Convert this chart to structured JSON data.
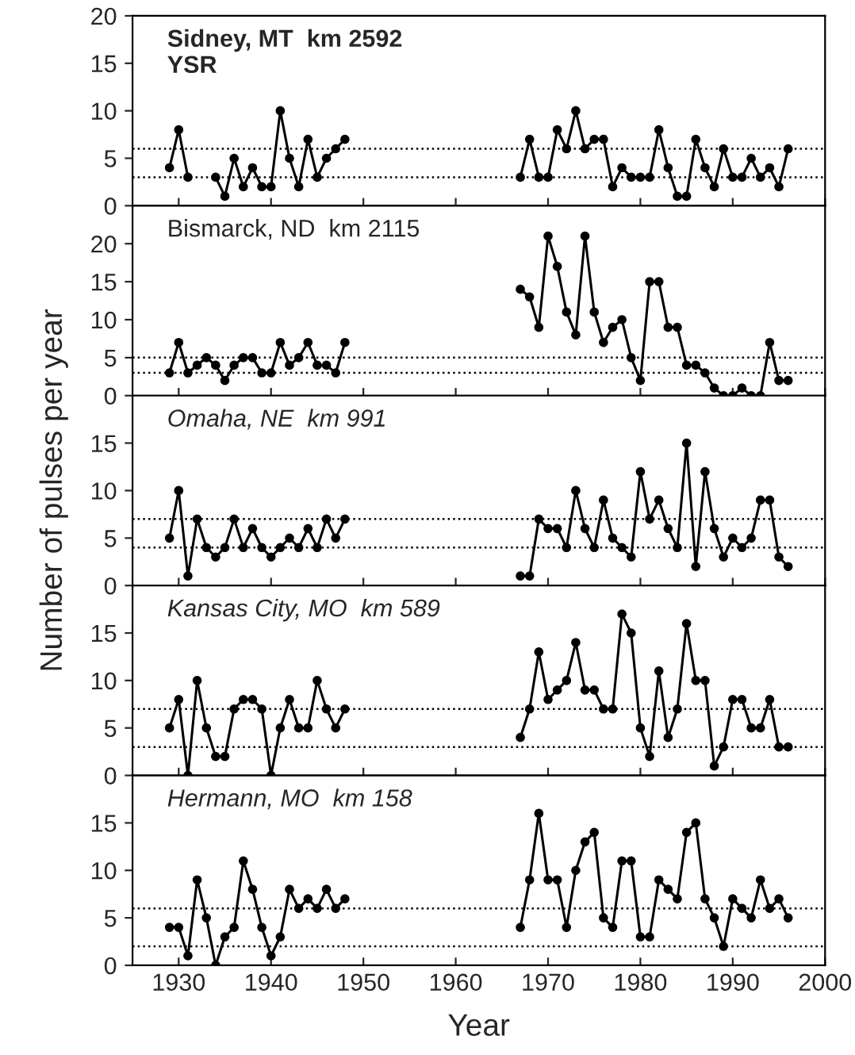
{
  "chart_data": [
    {
      "type": "line",
      "annotations": [
        "Sidney, MT  km 2592\nYSR"
      ],
      "xlim": [
        1925,
        2000
      ],
      "xticks": [
        1930,
        1940,
        1950,
        1960,
        1970,
        1980,
        1990,
        2000
      ],
      "ylim": [
        0,
        20
      ],
      "yticks": [
        0,
        5,
        10,
        15,
        20
      ],
      "tick_labels": "y",
      "grid": false,
      "marker": "circle",
      "line_style": "solid",
      "ref_lines": [
        {
          "axis": "y",
          "value": 6,
          "line_style": "dotted"
        },
        {
          "axis": "y",
          "value": 3,
          "line_style": "dotted"
        }
      ],
      "series": [
        {
          "color": "#000000",
          "x": [
            1929,
            1930,
            1931,
            1932,
            1933,
            1934,
            1935,
            1936,
            1937,
            1938,
            1939,
            1940,
            1941,
            1942,
            1943,
            1944,
            1945,
            1946,
            1947,
            1948,
            1949,
            1967,
            1968,
            1969,
            1970,
            1971,
            1972,
            1973,
            1974,
            1975,
            1976,
            1977,
            1978,
            1979,
            1980,
            1981,
            1982,
            1983,
            1984,
            1985,
            1986,
            1987,
            1988,
            1989,
            1990,
            1991,
            1992,
            1993,
            1994,
            1995,
            1996
          ],
          "values": [
            4,
            8,
            3,
            null,
            null,
            3,
            1,
            5,
            2,
            4,
            2,
            2,
            10,
            5,
            2,
            7,
            3,
            5,
            6,
            7,
            null,
            3,
            7,
            3,
            3,
            8,
            6,
            10,
            6,
            7,
            7,
            2,
            4,
            3,
            3,
            3,
            8,
            4,
            1,
            1,
            7,
            4,
            2,
            6,
            3,
            3,
            5,
            3,
            4,
            2,
            6
          ]
        }
      ]
    },
    {
      "type": "line",
      "annotations": [
        "Bismarck, ND  km 2115"
      ],
      "xlim": [
        1925,
        2000
      ],
      "xticks": [
        1930,
        1940,
        1950,
        1960,
        1970,
        1980,
        1990,
        2000
      ],
      "ylim": [
        0,
        25
      ],
      "yticks": [
        0,
        5,
        10,
        15,
        20
      ],
      "tick_labels": "y",
      "grid": false,
      "marker": "circle",
      "line_style": "solid",
      "ref_lines": [
        {
          "axis": "y",
          "value": 5,
          "line_style": "dotted"
        },
        {
          "axis": "y",
          "value": 3,
          "line_style": "dotted"
        }
      ],
      "series": [
        {
          "color": "#000000",
          "x": [
            1929,
            1930,
            1931,
            1932,
            1933,
            1934,
            1935,
            1936,
            1937,
            1938,
            1939,
            1940,
            1941,
            1942,
            1943,
            1944,
            1945,
            1946,
            1947,
            1948,
            1949,
            1967,
            1968,
            1969,
            1970,
            1971,
            1972,
            1973,
            1974,
            1975,
            1976,
            1977,
            1978,
            1979,
            1980,
            1981,
            1982,
            1983,
            1984,
            1985,
            1986,
            1987,
            1988,
            1989,
            1990,
            1991,
            1992,
            1993,
            1994,
            1995,
            1996
          ],
          "values": [
            3,
            7,
            3,
            4,
            5,
            4,
            2,
            4,
            5,
            5,
            3,
            3,
            7,
            4,
            5,
            7,
            4,
            4,
            3,
            7,
            null,
            14,
            13,
            9,
            21,
            17,
            11,
            8,
            21,
            11,
            7,
            9,
            10,
            5,
            2,
            15,
            15,
            9,
            9,
            4,
            4,
            3,
            1,
            0,
            0,
            1,
            0,
            0,
            7,
            2,
            2
          ]
        }
      ]
    },
    {
      "type": "line",
      "annotations": [
        "Omaha, NE  km 991"
      ],
      "ylabel": "Number of pulses per year",
      "xlim": [
        1925,
        2000
      ],
      "xticks": [
        1930,
        1940,
        1950,
        1960,
        1970,
        1980,
        1990,
        2000
      ],
      "ylim": [
        0,
        20
      ],
      "yticks": [
        0,
        5,
        10,
        15
      ],
      "tick_labels": "y",
      "grid": false,
      "marker": "circle",
      "line_style": "solid",
      "ref_lines": [
        {
          "axis": "y",
          "value": 7,
          "line_style": "dotted"
        },
        {
          "axis": "y",
          "value": 4,
          "line_style": "dotted"
        }
      ],
      "series": [
        {
          "color": "#000000",
          "x": [
            1929,
            1930,
            1931,
            1932,
            1933,
            1934,
            1935,
            1936,
            1937,
            1938,
            1939,
            1940,
            1941,
            1942,
            1943,
            1944,
            1945,
            1946,
            1947,
            1948,
            1949,
            1967,
            1968,
            1969,
            1970,
            1971,
            1972,
            1973,
            1974,
            1975,
            1976,
            1977,
            1978,
            1979,
            1980,
            1981,
            1982,
            1983,
            1984,
            1985,
            1986,
            1987,
            1988,
            1989,
            1990,
            1991,
            1992,
            1993,
            1994,
            1995,
            1996
          ],
          "values": [
            5,
            10,
            1,
            7,
            4,
            3,
            4,
            7,
            4,
            6,
            4,
            3,
            4,
            5,
            4,
            6,
            4,
            7,
            5,
            7,
            null,
            1,
            1,
            7,
            6,
            6,
            4,
            10,
            6,
            4,
            9,
            5,
            4,
            3,
            12,
            7,
            9,
            6,
            4,
            15,
            2,
            12,
            6,
            3,
            5,
            4,
            5,
            9,
            9,
            3,
            2
          ]
        }
      ]
    },
    {
      "type": "line",
      "annotations": [
        "Kansas City, MO  km 589"
      ],
      "xlim": [
        1925,
        2000
      ],
      "xticks": [
        1930,
        1940,
        1950,
        1960,
        1970,
        1980,
        1990,
        2000
      ],
      "ylim": [
        0,
        20
      ],
      "yticks": [
        0,
        5,
        10,
        15
      ],
      "tick_labels": "y",
      "grid": false,
      "marker": "circle",
      "line_style": "solid",
      "ref_lines": [
        {
          "axis": "y",
          "value": 7,
          "line_style": "dotted"
        },
        {
          "axis": "y",
          "value": 3,
          "line_style": "dotted"
        }
      ],
      "series": [
        {
          "color": "#000000",
          "x": [
            1929,
            1930,
            1931,
            1932,
            1933,
            1934,
            1935,
            1936,
            1937,
            1938,
            1939,
            1940,
            1941,
            1942,
            1943,
            1944,
            1945,
            1946,
            1947,
            1948,
            1949,
            1967,
            1968,
            1969,
            1970,
            1971,
            1972,
            1973,
            1974,
            1975,
            1976,
            1977,
            1978,
            1979,
            1980,
            1981,
            1982,
            1983,
            1984,
            1985,
            1986,
            1987,
            1988,
            1989,
            1990,
            1991,
            1992,
            1993,
            1994,
            1995,
            1996
          ],
          "values": [
            5,
            8,
            0,
            10,
            5,
            2,
            2,
            7,
            8,
            8,
            7,
            0,
            5,
            8,
            5,
            5,
            10,
            7,
            5,
            7,
            null,
            4,
            7,
            13,
            8,
            9,
            10,
            14,
            9,
            9,
            7,
            7,
            17,
            15,
            5,
            2,
            11,
            4,
            7,
            16,
            10,
            10,
            1,
            3,
            8,
            8,
            5,
            5,
            8,
            3,
            3
          ]
        }
      ]
    },
    {
      "type": "line",
      "annotations": [
        "Hermann, MO  km 158"
      ],
      "xlabel": "Year",
      "xlim": [
        1925,
        2000
      ],
      "xticks": [
        1930,
        1940,
        1950,
        1960,
        1970,
        1980,
        1990,
        2000
      ],
      "ylim": [
        0,
        20
      ],
      "yticks": [
        0,
        5,
        10,
        15
      ],
      "grid": false,
      "marker": "circle",
      "line_style": "solid",
      "ref_lines": [
        {
          "axis": "y",
          "value": 6,
          "line_style": "dotted"
        },
        {
          "axis": "y",
          "value": 2,
          "line_style": "dotted"
        }
      ],
      "series": [
        {
          "color": "#000000",
          "x": [
            1929,
            1930,
            1931,
            1932,
            1933,
            1934,
            1935,
            1936,
            1937,
            1938,
            1939,
            1940,
            1941,
            1942,
            1943,
            1944,
            1945,
            1946,
            1947,
            1948,
            1949,
            1967,
            1968,
            1969,
            1970,
            1971,
            1972,
            1973,
            1974,
            1975,
            1976,
            1977,
            1978,
            1979,
            1980,
            1981,
            1982,
            1983,
            1984,
            1985,
            1986,
            1987,
            1988,
            1989,
            1990,
            1991,
            1992,
            1993,
            1994,
            1995,
            1996
          ],
          "values": [
            4,
            4,
            1,
            9,
            5,
            0,
            3,
            4,
            11,
            8,
            4,
            1,
            3,
            8,
            6,
            7,
            6,
            8,
            6,
            7,
            null,
            4,
            9,
            16,
            9,
            9,
            4,
            10,
            13,
            14,
            5,
            4,
            11,
            11,
            3,
            3,
            9,
            8,
            7,
            14,
            15,
            7,
            5,
            2,
            7,
            6,
            5,
            9,
            6,
            7,
            5
          ]
        }
      ]
    }
  ]
}
